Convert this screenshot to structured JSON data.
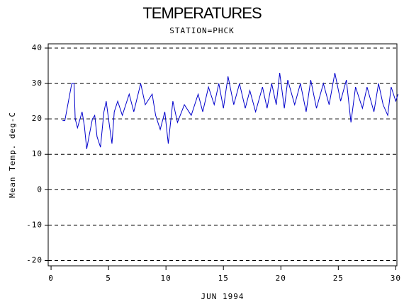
{
  "chart_data": {
    "type": "line",
    "title": "TEMPERATURES",
    "subtitle": "STATION=PHCK",
    "x_label": "JUN 1994",
    "y_label": "Mean Temp. deg-C",
    "xlim": [
      -0.25,
      30.1
    ],
    "ylim": [
      -21.5,
      41.2
    ],
    "xticks": [
      0,
      5,
      10,
      15,
      20,
      25,
      30
    ],
    "yticks": [
      -20,
      -10,
      0,
      10,
      20,
      30,
      40
    ],
    "grid": true,
    "series": [
      {
        "name": "Mean Temp",
        "color": "#0000cc",
        "x": [
          1.0,
          1.2,
          1.8,
          2.0,
          2.1,
          2.3,
          2.7,
          2.9,
          3.1,
          3.3,
          3.6,
          3.8,
          4.0,
          4.3,
          4.6,
          4.8,
          5.0,
          5.3,
          5.5,
          5.8,
          6.2,
          6.8,
          7.2,
          7.8,
          8.2,
          8.8,
          9.1,
          9.5,
          9.9,
          10.2,
          10.6,
          11.0,
          11.6,
          12.2,
          12.8,
          13.2,
          13.7,
          14.2,
          14.6,
          15.0,
          15.4,
          15.9,
          16.4,
          16.9,
          17.3,
          17.8,
          18.4,
          18.8,
          19.2,
          19.6,
          19.9,
          20.3,
          20.6,
          21.2,
          21.7,
          22.2,
          22.6,
          23.1,
          23.7,
          24.2,
          24.7,
          25.2,
          25.7,
          26.1,
          26.5,
          27.1,
          27.5,
          28.1,
          28.5,
          28.9,
          29.3,
          29.6,
          30.0,
          30.2
        ],
        "values": [
          19.5,
          19.5,
          30,
          30,
          20,
          17.5,
          22,
          18,
          11.5,
          15,
          20,
          21,
          15,
          12,
          22,
          25,
          20,
          13,
          22,
          25,
          21,
          27,
          22,
          30,
          24,
          27,
          21,
          17,
          22,
          13,
          25,
          19,
          24,
          21,
          27,
          22,
          29,
          24,
          30,
          23,
          32,
          24,
          30,
          23,
          28,
          22,
          29,
          23,
          30,
          24,
          33,
          23,
          31,
          24,
          30,
          22,
          31,
          23,
          30,
          24,
          33,
          25,
          31,
          19,
          29,
          23,
          29,
          22,
          30,
          24,
          21,
          29,
          25,
          27
        ]
      }
    ]
  }
}
